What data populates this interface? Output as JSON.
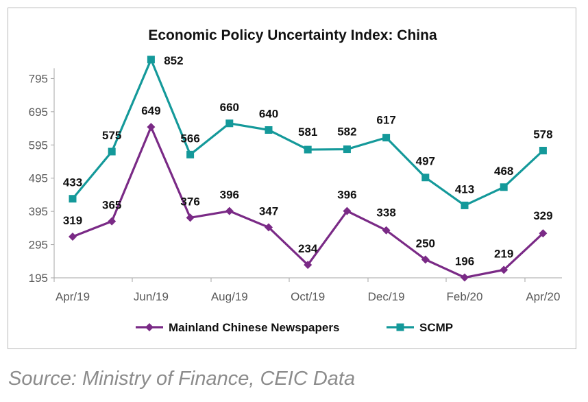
{
  "chart_data": {
    "type": "line",
    "title": "Economic Policy Uncertainty Index: China",
    "xlabel": "",
    "ylabel": "",
    "x": [
      "Apr/19",
      "May/19",
      "Jun/19",
      "Jul/19",
      "Aug/19",
      "Sep/19",
      "Oct/19",
      "Nov/19",
      "Dec/19",
      "Jan/20",
      "Feb/20",
      "Mar/20",
      "Apr/20"
    ],
    "x_tick_labels": [
      "Apr/19",
      "Jun/19",
      "Aug/19",
      "Oct/19",
      "Dec/19",
      "Feb/20",
      "Apr/20"
    ],
    "y_ticks": [
      "195",
      "295",
      "395",
      "495",
      "595",
      "695",
      "795"
    ],
    "ylim": [
      195,
      855
    ],
    "grid": false,
    "legend_position": "bottom",
    "series": [
      {
        "name": "Mainland Chinese Newspapers",
        "color": "#7a2a86",
        "marker": "diamond",
        "values": [
          319,
          365,
          649,
          376,
          396,
          347,
          234,
          396,
          338,
          250,
          196,
          219,
          329
        ]
      },
      {
        "name": "SCMP",
        "color": "#14999a",
        "marker": "square",
        "values": [
          433,
          575,
          852,
          566,
          660,
          640,
          581,
          582,
          617,
          497,
          413,
          468,
          578
        ]
      }
    ]
  },
  "source_note": "Source: Ministry of Finance, CEIC Data"
}
